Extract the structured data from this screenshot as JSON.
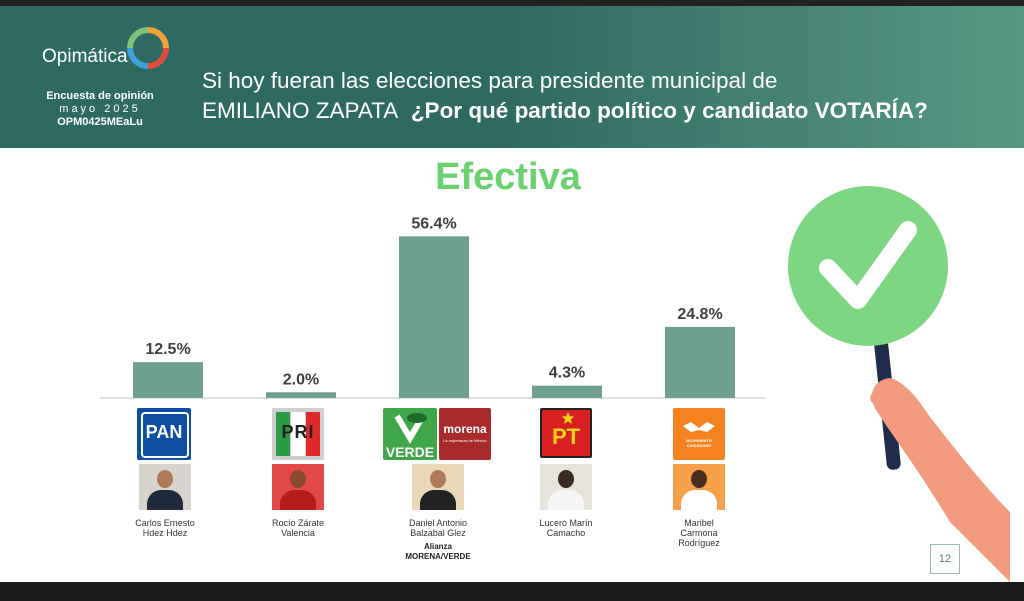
{
  "brand": {
    "name": "Opimática",
    "survey_label": "Encuesta de opinión",
    "survey_date": "mayo 2025",
    "survey_code": "OPM0425MEaLu"
  },
  "question": {
    "line1": "Si hoy fueran las elecciones para presidente municipal de",
    "place": "EMILIANO ZAPATA",
    "emphasis": "¿Por qué partido político y candidato VOTARÍA?"
  },
  "page_number": "12",
  "colors": {
    "header": "#2f6a62",
    "bar": "#6f9f8d",
    "title": "#6bd06e",
    "check": "#7dd681"
  },
  "chart_data": {
    "type": "bar",
    "title": "Efectiva",
    "categories": [
      "PAN",
      "PRI",
      "VERDE / morena",
      "PT",
      "MOVIMIENTO CIUDADANO"
    ],
    "values": [
      12.5,
      2.0,
      56.4,
      4.3,
      24.8
    ],
    "value_labels": [
      "12.5%",
      "2.0%",
      "56.4%",
      "4.3%",
      "24.8%"
    ],
    "ylim": [
      0,
      60
    ],
    "grid": false,
    "legend": "none"
  },
  "candidates": [
    {
      "party": "PAN",
      "name_line1": "Carlos Ernesto",
      "name_line2": "Hdez Hdez",
      "name_line3": ""
    },
    {
      "party": "PRI",
      "name_line1": "Rocío Zárate",
      "name_line2": "Valencia",
      "name_line3": ""
    },
    {
      "party": "VERDE",
      "party2": "morena",
      "party2_sub": "La esperanza de México",
      "name_line1": "Daniel Antonio",
      "name_line2": "Balzabal Glez",
      "name_line3": "",
      "alliance1": "Alianza",
      "alliance2": "MORENA/VERDE"
    },
    {
      "party": "PT",
      "name_line1": "Lucero Marín",
      "name_line2": "Camacho",
      "name_line3": ""
    },
    {
      "party": "MOVIMIENTO CIUDADANO",
      "name_line1": "Maribel",
      "name_line2": "Carmona",
      "name_line3": "Rodríguez"
    }
  ],
  "icons": {
    "check": "checkmark-sign-icon",
    "hand": "hand-holding-sign-icon"
  }
}
